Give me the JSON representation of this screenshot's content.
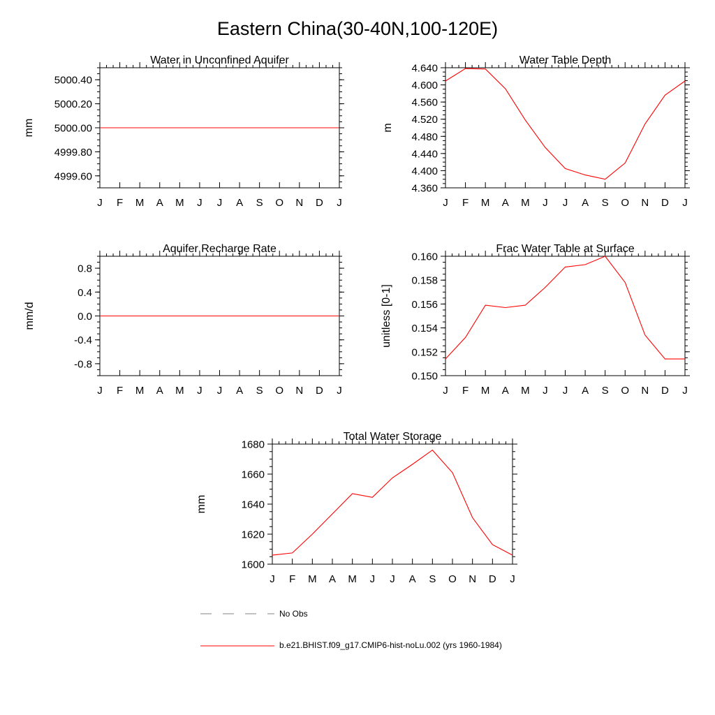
{
  "figure_title": "Eastern China(30-40N,100-120E)",
  "chart_data": [
    {
      "type": "line",
      "title": "Water in Unconfined Aquifer",
      "ylabel": "mm",
      "ylim": [
        4999.5,
        5000.5
      ],
      "yticks": [
        "5000.40",
        "5000.20",
        "5000.00",
        "4999.80",
        "4999.60"
      ],
      "ytick_values": [
        5000.4,
        5000.2,
        5000.0,
        4999.8,
        4999.6
      ],
      "categories": [
        "J",
        "F",
        "M",
        "A",
        "M",
        "J",
        "J",
        "A",
        "S",
        "O",
        "N",
        "D",
        "J"
      ],
      "values": [
        5000.0,
        5000.0,
        5000.0,
        5000.0,
        5000.0,
        5000.0,
        5000.0,
        5000.0,
        5000.0,
        5000.0,
        5000.0,
        5000.0,
        5000.0
      ],
      "color": "#ff0000"
    },
    {
      "type": "line",
      "title": "Water Table Depth",
      "ylabel": "m",
      "ylim": [
        4.36,
        4.64
      ],
      "yticks": [
        "4.640",
        "4.600",
        "4.560",
        "4.520",
        "4.480",
        "4.440",
        "4.400",
        "4.360"
      ],
      "ytick_values": [
        4.64,
        4.6,
        4.56,
        4.52,
        4.48,
        4.44,
        4.4,
        4.36
      ],
      "categories": [
        "J",
        "F",
        "M",
        "A",
        "M",
        "J",
        "J",
        "A",
        "S",
        "O",
        "N",
        "D",
        "J"
      ],
      "values": [
        4.609,
        4.638,
        4.637,
        4.591,
        4.518,
        4.454,
        4.405,
        4.39,
        4.38,
        4.418,
        4.509,
        4.576,
        4.609
      ],
      "color": "#ff0000"
    },
    {
      "type": "line",
      "title": "Aquifer Recharge Rate",
      "ylabel": "mm/d",
      "ylim": [
        -1.0,
        1.0
      ],
      "yticks": [
        "0.8",
        "0.4",
        "0.0",
        "-0.4",
        "-0.8"
      ],
      "ytick_values": [
        0.8,
        0.4,
        0.0,
        -0.4,
        -0.8
      ],
      "categories": [
        "J",
        "F",
        "M",
        "A",
        "M",
        "J",
        "J",
        "A",
        "S",
        "O",
        "N",
        "D",
        "J"
      ],
      "values": [
        0.0,
        0.0,
        0.0,
        0.0,
        0.0,
        0.0,
        0.0,
        0.0,
        0.0,
        0.0,
        0.0,
        0.0,
        0.0
      ],
      "color": "#ff0000"
    },
    {
      "type": "line",
      "title": "Frac Water Table at Surface",
      "ylabel": "unitless [0-1]",
      "ylim": [
        0.15,
        0.16
      ],
      "yticks": [
        "0.160",
        "0.158",
        "0.156",
        "0.154",
        "0.152",
        "0.150"
      ],
      "ytick_values": [
        0.16,
        0.158,
        0.156,
        0.154,
        0.152,
        0.15
      ],
      "categories": [
        "J",
        "F",
        "M",
        "A",
        "M",
        "J",
        "J",
        "A",
        "S",
        "O",
        "N",
        "D",
        "J"
      ],
      "values": [
        0.1514,
        0.1532,
        0.1559,
        0.1557,
        0.1559,
        0.1574,
        0.1591,
        0.1593,
        0.16,
        0.1578,
        0.1534,
        0.1514,
        0.1514
      ],
      "color": "#ff0000"
    },
    {
      "type": "line",
      "title": "Total Water Storage",
      "ylabel": "mm",
      "ylim": [
        1600,
        1680
      ],
      "yticks": [
        "1680",
        "1660",
        "1640",
        "1620",
        "1600"
      ],
      "ytick_values": [
        1680,
        1660,
        1640,
        1620,
        1600
      ],
      "categories": [
        "J",
        "F",
        "M",
        "A",
        "M",
        "J",
        "J",
        "A",
        "S",
        "O",
        "N",
        "D",
        "J"
      ],
      "values": [
        1606,
        1607.5,
        1620,
        1633.5,
        1647,
        1644.5,
        1657.5,
        1666.5,
        1676,
        1661,
        1631,
        1613,
        1606
      ],
      "color": "#ff0000"
    }
  ],
  "legend": [
    {
      "label": "No Obs",
      "style": "dashed",
      "color": "#808080"
    },
    {
      "label": "b.e21.BHIST.f09_g17.CMIP6-hist-noLu.002 (yrs 1960-1984)",
      "style": "solid",
      "color": "#ff0000"
    }
  ]
}
